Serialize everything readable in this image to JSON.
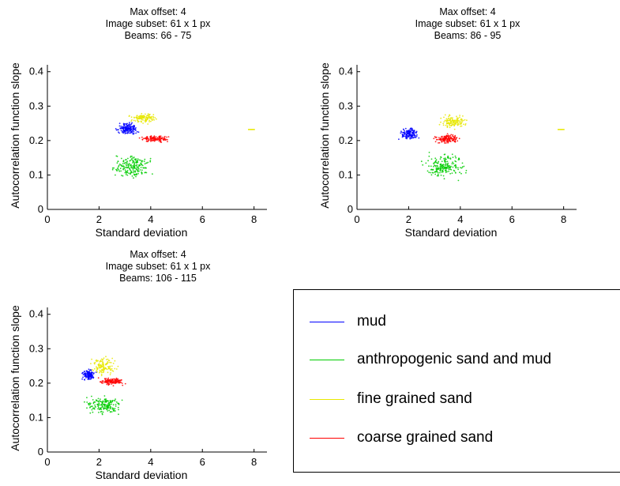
{
  "chart_data": [
    {
      "type": "scatter",
      "title_lines": [
        "Max offset: 4",
        "Image subset: 61 x 1 px",
        "Beams: 66 - 75"
      ],
      "xlabel": "Standard deviation",
      "ylabel": "Autocorrelation function slope",
      "xlim": [
        0,
        8.5
      ],
      "ylim": [
        0,
        0.42
      ],
      "xticks": [
        0,
        2,
        4,
        6,
        8
      ],
      "yticks": [
        0,
        0.1,
        0.2,
        0.3,
        0.4
      ],
      "series": [
        {
          "name": "mud",
          "color": "#0000ff",
          "center": [
            3.1,
            0.235
          ],
          "spread": [
            0.55,
            0.022
          ],
          "n": 160
        },
        {
          "name": "anthropogenic sand and mud",
          "color": "#00cc00",
          "center": [
            3.3,
            0.125
          ],
          "spread": [
            1.0,
            0.04
          ],
          "n": 200
        },
        {
          "name": "fine grained sand",
          "color": "#e8e800",
          "center": [
            3.7,
            0.265
          ],
          "spread": [
            0.65,
            0.018
          ],
          "n": 120,
          "outlier": [
            7.9,
            0.232
          ]
        },
        {
          "name": "coarse grained sand",
          "color": "#ff0000",
          "center": [
            4.2,
            0.205
          ],
          "spread": [
            0.75,
            0.014
          ],
          "n": 120
        }
      ]
    },
    {
      "type": "scatter",
      "title_lines": [
        "Max offset: 4",
        "Image subset: 61 x 1 px",
        "Beams: 86 - 95"
      ],
      "xlabel": "Standard deviation",
      "ylabel": "Autocorrelation function slope",
      "xlim": [
        0,
        8.5
      ],
      "ylim": [
        0,
        0.42
      ],
      "xticks": [
        0,
        2,
        4,
        6,
        8
      ],
      "yticks": [
        0,
        0.1,
        0.2,
        0.3,
        0.4
      ],
      "series": [
        {
          "name": "mud",
          "color": "#0000ff",
          "center": [
            2.0,
            0.22
          ],
          "spread": [
            0.45,
            0.022
          ],
          "n": 150
        },
        {
          "name": "anthropogenic sand and mud",
          "color": "#00cc00",
          "center": [
            3.4,
            0.125
          ],
          "spread": [
            1.0,
            0.045
          ],
          "n": 200
        },
        {
          "name": "fine grained sand",
          "color": "#e8e800",
          "center": [
            3.7,
            0.255
          ],
          "spread": [
            0.7,
            0.025
          ],
          "n": 130,
          "outlier": [
            7.9,
            0.232
          ]
        },
        {
          "name": "coarse grained sand",
          "color": "#ff0000",
          "center": [
            3.5,
            0.205
          ],
          "spread": [
            0.65,
            0.016
          ],
          "n": 130
        }
      ]
    },
    {
      "type": "scatter",
      "title_lines": [
        "Max offset: 4",
        "Image subset: 61 x 1 px",
        "Beams: 106 - 115"
      ],
      "xlabel": "Standard deviation",
      "ylabel": "Autocorrelation function slope",
      "xlim": [
        0,
        8.5
      ],
      "ylim": [
        0,
        0.42
      ],
      "xticks": [
        0,
        2,
        4,
        6,
        8
      ],
      "yticks": [
        0,
        0.1,
        0.2,
        0.3,
        0.4
      ],
      "series": [
        {
          "name": "mud",
          "color": "#0000ff",
          "center": [
            1.6,
            0.225
          ],
          "spread": [
            0.3,
            0.02
          ],
          "n": 130
        },
        {
          "name": "anthropogenic sand and mud",
          "color": "#00cc00",
          "center": [
            2.2,
            0.135
          ],
          "spread": [
            0.9,
            0.035
          ],
          "n": 180
        },
        {
          "name": "fine grained sand",
          "color": "#e8e800",
          "center": [
            2.2,
            0.25
          ],
          "spread": [
            0.6,
            0.035
          ],
          "n": 130
        },
        {
          "name": "coarse grained sand",
          "color": "#ff0000",
          "center": [
            2.5,
            0.205
          ],
          "spread": [
            0.65,
            0.014
          ],
          "n": 120
        }
      ]
    }
  ],
  "legend": {
    "items": [
      {
        "label": "mud",
        "color": "#0000ff"
      },
      {
        "label": "anthropogenic sand and mud",
        "color": "#00cc00"
      },
      {
        "label": "fine grained sand",
        "color": "#e8e800"
      },
      {
        "label": "coarse grained sand",
        "color": "#ff0000"
      }
    ]
  }
}
